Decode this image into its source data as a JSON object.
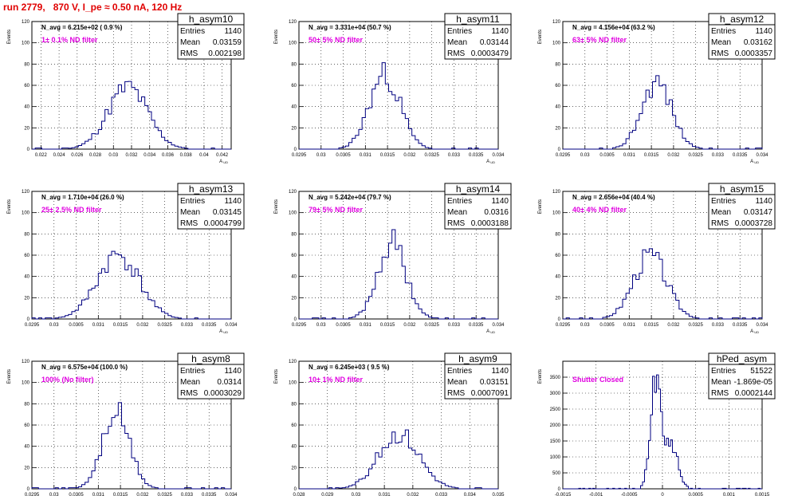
{
  "header": {
    "title": "run 2779,   870 V, I_pe ≈ 0.50 nA, 120 Hz"
  },
  "chart_data": [
    {
      "type": "bar",
      "stat_title": "h_asym10",
      "nav": "N_avg = 6.215e+02 ( 0.9 %)",
      "filter": "1± 0.1% ND filter",
      "stats": {
        "Entries": "1140",
        "Mean": "0.03159",
        "RMS": "0.002198"
      },
      "xlabel": "A_UD",
      "ylabel": "Events",
      "xlim": [
        0.021,
        0.043
      ],
      "ylim": [
        0,
        120
      ],
      "xticks": [
        "0.022",
        "0.024",
        "0.026",
        "0.028",
        "0.03",
        "0.032",
        "0.034",
        "0.036",
        "0.038",
        "0.04",
        "0.042"
      ],
      "yticks": [
        "0",
        "20",
        "40",
        "60",
        "80",
        "100",
        "120"
      ],
      "mean": 0.03159,
      "rms": 0.002198,
      "peak": 58,
      "bins": 60,
      "seed": 11
    },
    {
      "type": "bar",
      "stat_title": "h_asym11",
      "nav": "N_avg = 3.331e+04 (50.7 %)",
      "filter": "50± 5% ND filter",
      "stats": {
        "Entries": "1140",
        "Mean": "0.03144",
        "RMS": "0.0003479"
      },
      "xlabel": "A_UD",
      "ylabel": "Events",
      "xlim": [
        0.0295,
        0.034
      ],
      "ylim": [
        0,
        120
      ],
      "xticks": [
        "0.0295",
        "0.03",
        "0.0305",
        "0.031",
        "0.0315",
        "0.032",
        "0.0325",
        "0.033",
        "0.0335",
        "0.034"
      ],
      "yticks": [
        "0",
        "20",
        "40",
        "60",
        "80",
        "100",
        "120"
      ],
      "mean": 0.03144,
      "rms": 0.0003479,
      "peak": 70,
      "bins": 60,
      "seed": 23
    },
    {
      "type": "bar",
      "stat_title": "h_asym12",
      "nav": "N_avg = 4.156e+04 (63.2 %)",
      "filter": "63± 5% ND filter",
      "stats": {
        "Entries": "1140",
        "Mean": "0.03162",
        "RMS": "0.0003357"
      },
      "xlabel": "A_UD",
      "ylabel": "Events",
      "xlim": [
        0.0295,
        0.034
      ],
      "ylim": [
        0,
        120
      ],
      "xticks": [
        "0.0295",
        "0.03",
        "0.0305",
        "0.031",
        "0.0315",
        "0.032",
        "0.0325",
        "0.033",
        "0.0335",
        "0.034"
      ],
      "yticks": [
        "0",
        "20",
        "40",
        "60",
        "80",
        "100",
        "120"
      ],
      "mean": 0.03162,
      "rms": 0.0003357,
      "peak": 64,
      "bins": 60,
      "seed": 37
    },
    {
      "type": "bar",
      "stat_title": "h_asym13",
      "nav": "N_avg = 1.710e+04 (26.0 %)",
      "filter": "25± 2.5% ND filter",
      "stats": {
        "Entries": "1140",
        "Mean": "0.03145",
        "RMS": "0.0004799"
      },
      "xlabel": "A_UD",
      "ylabel": "Events",
      "xlim": [
        0.0295,
        0.034
      ],
      "ylim": [
        0,
        120
      ],
      "xticks": [
        "0.0295",
        "0.03",
        "0.0305",
        "0.031",
        "0.0315",
        "0.032",
        "0.0325",
        "0.033",
        "0.0335",
        "0.034"
      ],
      "yticks": [
        "0",
        "20",
        "40",
        "60",
        "80",
        "100",
        "120"
      ],
      "mean": 0.03145,
      "rms": 0.0004799,
      "peak": 60,
      "bins": 60,
      "seed": 41
    },
    {
      "type": "bar",
      "stat_title": "h_asym14",
      "nav": "N_avg = 5.242e+04 (79.7 %)",
      "filter": "79± 5% ND filter",
      "stats": {
        "Entries": "1140",
        "Mean": "0.0316",
        "RMS": "0.0003188"
      },
      "xlabel": "A_UD",
      "ylabel": "Events",
      "xlim": [
        0.0295,
        0.034
      ],
      "ylim": [
        0,
        120
      ],
      "xticks": [
        "0.0295",
        "0.03",
        "0.0305",
        "0.031",
        "0.0315",
        "0.032",
        "0.0325",
        "0.033",
        "0.0335",
        "0.034"
      ],
      "yticks": [
        "0",
        "20",
        "40",
        "60",
        "80",
        "100",
        "120"
      ],
      "mean": 0.0316,
      "rms": 0.0003188,
      "peak": 72,
      "bins": 60,
      "seed": 53
    },
    {
      "type": "bar",
      "stat_title": "h_asym15",
      "nav": "N_avg = 2.656e+04 (40.4 %)",
      "filter": "40± 4% ND filter",
      "stats": {
        "Entries": "1140",
        "Mean": "0.03147",
        "RMS": "0.0003728"
      },
      "xlabel": "A_UD",
      "ylabel": "Events",
      "xlim": [
        0.0295,
        0.034
      ],
      "ylim": [
        0,
        120
      ],
      "xticks": [
        "0.0295",
        "0.03",
        "0.0305",
        "0.031",
        "0.0315",
        "0.032",
        "0.0325",
        "0.033",
        "0.0335",
        "0.034"
      ],
      "yticks": [
        "0",
        "20",
        "40",
        "60",
        "80",
        "100",
        "120"
      ],
      "mean": 0.03147,
      "rms": 0.0003728,
      "peak": 60,
      "bins": 60,
      "seed": 67
    },
    {
      "type": "bar",
      "stat_title": "h_asym8",
      "nav": "N_avg = 6.575e+04 (100.0 %)",
      "filter": "100% (No filter)",
      "stats": {
        "Entries": "1140",
        "Mean": "0.0314",
        "RMS": "0.0003029"
      },
      "xlabel": "A_UD",
      "ylabel": "Events",
      "xlim": [
        0.0295,
        0.034
      ],
      "ylim": [
        0,
        120
      ],
      "xticks": [
        "0.0295",
        "0.03",
        "0.0305",
        "0.031",
        "0.0315",
        "0.032",
        "0.0325",
        "0.033",
        "0.0335",
        "0.034"
      ],
      "yticks": [
        "0",
        "20",
        "40",
        "60",
        "80",
        "100",
        "120"
      ],
      "mean": 0.0314,
      "rms": 0.0003029,
      "peak": 72,
      "bins": 60,
      "seed": 71
    },
    {
      "type": "bar",
      "stat_title": "h_asym9",
      "nav": "N_avg = 6.245e+03 ( 9.5 %)",
      "filter": "10± 1% ND filter",
      "stats": {
        "Entries": "1140",
        "Mean": "0.03151",
        "RMS": "0.0007091"
      },
      "xlabel": "A_UD",
      "ylabel": "Events",
      "xlim": [
        0.028,
        0.035
      ],
      "ylim": [
        0,
        120
      ],
      "xticks": [
        "0.028",
        "0.029",
        "0.03",
        "0.031",
        "0.032",
        "0.033",
        "0.034",
        "0.035"
      ],
      "yticks": [
        "0",
        "20",
        "40",
        "60",
        "80",
        "100",
        "120"
      ],
      "mean": 0.03151,
      "rms": 0.0007091,
      "peak": 52,
      "bins": 60,
      "seed": 83
    },
    {
      "type": "bar",
      "stat_title": "hPed_asym",
      "nav": "",
      "filter": "Shutter Closed",
      "stats": {
        "Entries": "51522",
        "Mean": "-1.869e-05",
        "RMS": "0.0002144"
      },
      "xlabel": "A_UD",
      "ylabel": "Events",
      "xlim": [
        -0.0015,
        0.0015
      ],
      "ylim": [
        0,
        4000
      ],
      "xticks": [
        "-0.0015",
        "-0.001",
        "-0.0005",
        "0",
        "0.0005",
        "0.001",
        "0.0015"
      ],
      "yticks": [
        "0",
        "500",
        "1000",
        "1500",
        "2000",
        "2500",
        "3000",
        "3500"
      ],
      "mean": -0.0001,
      "rms": 8e-05,
      "peak": 3600,
      "bins": 100,
      "seed": 97,
      "bimodal": {
        "mean2": 0.00013,
        "rms2": 0.0001,
        "peak2": 1400
      }
    }
  ]
}
